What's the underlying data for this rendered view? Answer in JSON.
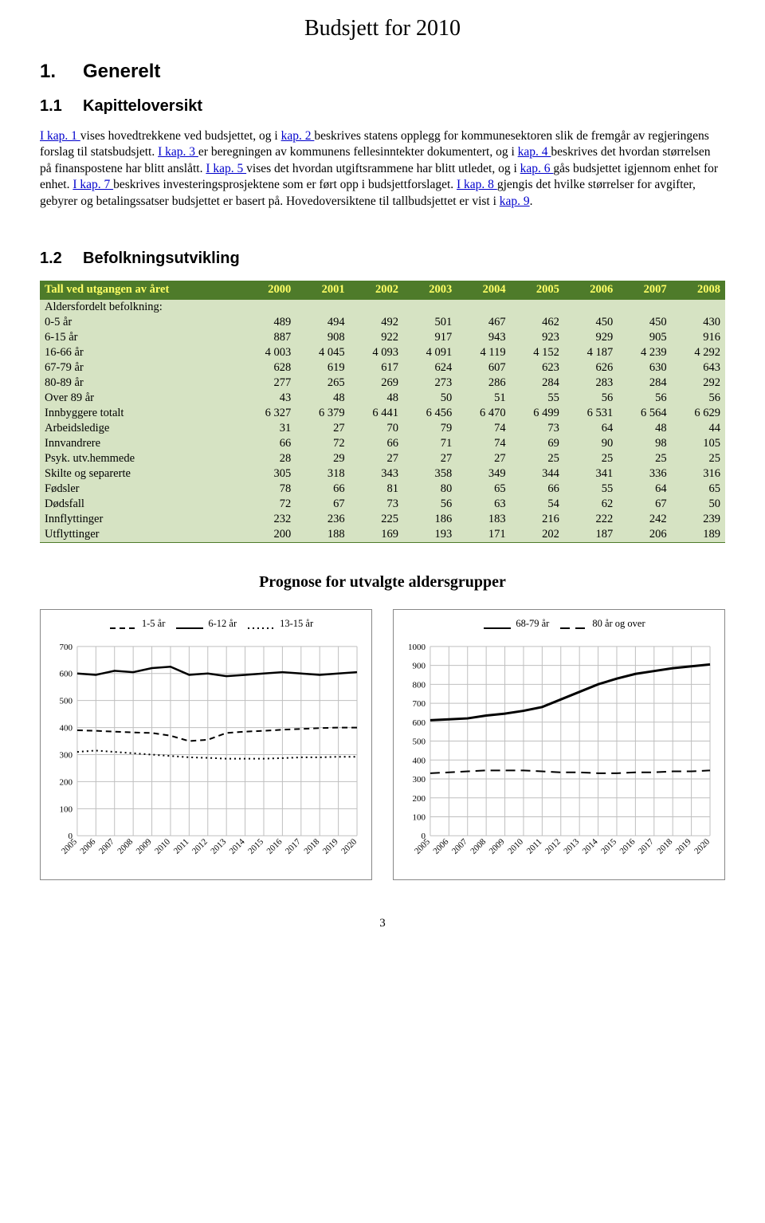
{
  "header": {
    "title": "Budsjett for 2010"
  },
  "section1": {
    "num": "1.",
    "title": "Generelt",
    "sub1": {
      "num": "1.1",
      "title": "Kapitteloversikt"
    },
    "sub2": {
      "num": "1.2",
      "title": "Befolkningsutvikling"
    }
  },
  "para_parts": {
    "p1a": "I kap. 1 ",
    "p1b": "vises hovedtrekkene ved budsjettet, og i ",
    "p2a": "kap. 2 ",
    "p2b": "beskrives statens opplegg for kommunesektoren slik de fremgår av regjeringens forslag til statsbudsjett. ",
    "p3a": "I kap. 3 ",
    "p3b": "er beregningen av kommunens fellesinntekter dokumentert, og i ",
    "p4a": "kap. 4 ",
    "p4b": "beskrives det hvordan størrelsen på finanspostene har blitt anslått. ",
    "p5a": "I kap. 5 ",
    "p5b": "vises det hvordan utgiftsrammene har blitt utledet, og i ",
    "p6a": "kap. 6 ",
    "p6b": "gås budsjettet igjennom enhet for enhet. ",
    "p7a": "I kap. 7 ",
    "p7b": "beskrives investeringsprosjektene som er ført opp i budsjettforslaget. ",
    "p8a": "I kap. 8 ",
    "p8b": "gjengis det hvilke størrelser for avgifter, gebyrer og betalingssatser budsjettet er basert på. Hovedoversiktene til tallbudsjettet er vist i ",
    "p9a": "kap. 9",
    "p9b": "."
  },
  "table": {
    "header_first": "Tall ved utgangen av året",
    "years": [
      "2000",
      "2001",
      "2002",
      "2003",
      "2004",
      "2005",
      "2006",
      "2007",
      "2008"
    ],
    "subheader": "Aldersfordelt befolkning:",
    "rows": [
      {
        "label": "0-5 år",
        "v": [
          "489",
          "494",
          "492",
          "501",
          "467",
          "462",
          "450",
          "450",
          "430"
        ]
      },
      {
        "label": "6-15 år",
        "v": [
          "887",
          "908",
          "922",
          "917",
          "943",
          "923",
          "929",
          "905",
          "916"
        ]
      },
      {
        "label": "16-66 år",
        "v": [
          "4 003",
          "4 045",
          "4 093",
          "4 091",
          "4 119",
          "4 152",
          "4 187",
          "4 239",
          "4 292"
        ]
      },
      {
        "label": "67-79 år",
        "v": [
          "628",
          "619",
          "617",
          "624",
          "607",
          "623",
          "626",
          "630",
          "643"
        ]
      },
      {
        "label": "80-89 år",
        "v": [
          "277",
          "265",
          "269",
          "273",
          "286",
          "284",
          "283",
          "284",
          "292"
        ]
      },
      {
        "label": "Over 89 år",
        "v": [
          "43",
          "48",
          "48",
          "50",
          "51",
          "55",
          "56",
          "56",
          "56"
        ]
      },
      {
        "label": "Innbyggere totalt",
        "v": [
          "6 327",
          "6 379",
          "6 441",
          "6 456",
          "6 470",
          "6 499",
          "6 531",
          "6 564",
          "6 629"
        ]
      },
      {
        "label": "Arbeidsledige",
        "v": [
          "31",
          "27",
          "70",
          "79",
          "74",
          "73",
          "64",
          "48",
          "44"
        ]
      },
      {
        "label": "Innvandrere",
        "v": [
          "66",
          "72",
          "66",
          "71",
          "74",
          "69",
          "90",
          "98",
          "105"
        ]
      },
      {
        "label": "Psyk. utv.hemmede",
        "v": [
          "28",
          "29",
          "27",
          "27",
          "27",
          "25",
          "25",
          "25",
          "25"
        ]
      },
      {
        "label": "Skilte og separerte",
        "v": [
          "305",
          "318",
          "343",
          "358",
          "349",
          "344",
          "341",
          "336",
          "316"
        ]
      },
      {
        "label": "Fødsler",
        "v": [
          "78",
          "66",
          "81",
          "80",
          "65",
          "66",
          "55",
          "64",
          "65"
        ]
      },
      {
        "label": "Dødsfall",
        "v": [
          "72",
          "67",
          "73",
          "56",
          "63",
          "54",
          "62",
          "67",
          "50"
        ]
      },
      {
        "label": "Innflyttinger",
        "v": [
          "232",
          "236",
          "225",
          "186",
          "183",
          "216",
          "222",
          "242",
          "239"
        ]
      },
      {
        "label": "Utflyttinger",
        "v": [
          "200",
          "188",
          "169",
          "193",
          "171",
          "202",
          "187",
          "206",
          "189"
        ]
      }
    ]
  },
  "charts": {
    "title": "Prognose for utvalgte aldersgrupper",
    "xlabels": [
      "2005",
      "2006",
      "2007",
      "2008",
      "2009",
      "2010",
      "2011",
      "2012",
      "2013",
      "2014",
      "2015",
      "2016",
      "2017",
      "2018",
      "2019",
      "2020"
    ],
    "left": {
      "legend": [
        {
          "label": "1-5 år",
          "style": "short-dash"
        },
        {
          "label": "6-12 år",
          "style": "solid"
        },
        {
          "label": "13-15 år",
          "style": "dots"
        }
      ],
      "ylim": [
        0,
        700
      ],
      "ytick": 100,
      "series": [
        {
          "style": "solid",
          "width": 2.5,
          "vals": [
            600,
            595,
            610,
            605,
            620,
            625,
            595,
            600,
            590,
            595,
            600,
            605,
            600,
            595,
            600,
            605
          ]
        },
        {
          "style": "short-dash",
          "width": 2,
          "vals": [
            390,
            388,
            385,
            382,
            380,
            370,
            350,
            355,
            380,
            385,
            388,
            392,
            395,
            398,
            400,
            400
          ]
        },
        {
          "style": "dots",
          "width": 2,
          "vals": [
            310,
            315,
            310,
            305,
            300,
            295,
            290,
            288,
            285,
            285,
            285,
            287,
            290,
            290,
            292,
            292
          ]
        }
      ]
    },
    "right": {
      "legend": [
        {
          "label": "68-79 år",
          "style": "solid"
        },
        {
          "label": "80 år og over",
          "style": "long-dash"
        }
      ],
      "ylim": [
        0,
        1000
      ],
      "ytick": 100,
      "series": [
        {
          "style": "solid",
          "width": 3,
          "vals": [
            610,
            615,
            620,
            635,
            645,
            660,
            680,
            720,
            760,
            800,
            830,
            855,
            870,
            885,
            895,
            905
          ]
        },
        {
          "style": "long-dash",
          "width": 2,
          "vals": [
            330,
            335,
            340,
            345,
            345,
            345,
            340,
            335,
            335,
            330,
            330,
            335,
            335,
            340,
            340,
            345
          ]
        }
      ]
    },
    "colors": {
      "line": "#000000",
      "grid": "#bfbfbf",
      "axis": "#808080",
      "bg": "#ffffff"
    }
  },
  "footer": {
    "page": "3"
  }
}
